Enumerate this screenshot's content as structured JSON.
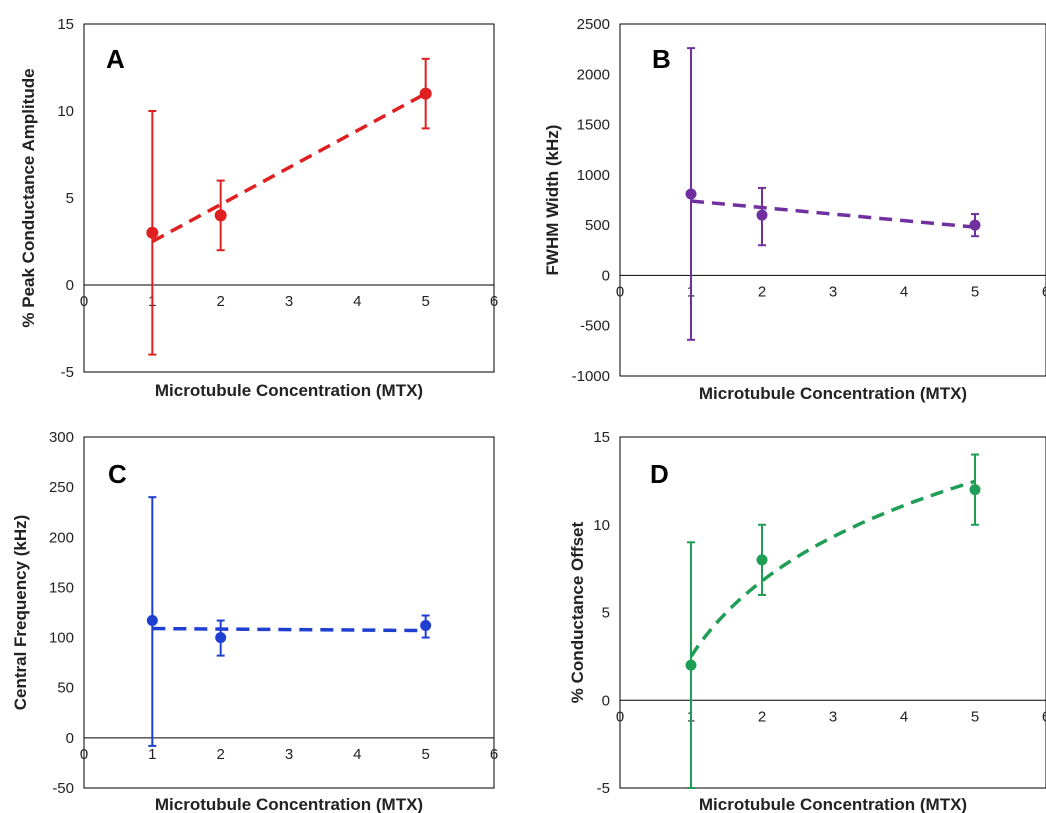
{
  "chart_data": [
    {
      "panel": "A",
      "type": "scatter",
      "xlabel": "Microtubule Concentration (MTX)",
      "ylabel": "% Peak Conductance Amplitude",
      "xlim": [
        0,
        6
      ],
      "ylim": [
        -5,
        15
      ],
      "xticks": [
        0,
        1,
        2,
        3,
        4,
        5,
        6
      ],
      "yticks": [
        -5,
        0,
        5,
        10,
        15
      ],
      "color": "#e02020",
      "points": [
        {
          "x": 1,
          "y": 3,
          "err_low": -4,
          "err_high": 10
        },
        {
          "x": 2,
          "y": 4,
          "err_low": 2,
          "err_high": 6
        },
        {
          "x": 5,
          "y": 11,
          "err_low": 9,
          "err_high": 13
        }
      ],
      "trend": {
        "kind": "linear",
        "x": [
          1,
          5
        ],
        "y": [
          2.5,
          11
        ]
      },
      "grid": false
    },
    {
      "panel": "B",
      "type": "scatter",
      "xlabel": "Microtubule Concentration (MTX)",
      "ylabel": "FWHM Width (kHz)",
      "xlim": [
        0,
        6
      ],
      "ylim": [
        -1000,
        2500
      ],
      "xticks": [
        0,
        1,
        2,
        3,
        4,
        5,
        6
      ],
      "yticks": [
        -1000,
        -500,
        0,
        500,
        1000,
        1500,
        2000,
        2500
      ],
      "color": "#7030a0",
      "points": [
        {
          "x": 1,
          "y": 810,
          "err_low": -640,
          "err_high": 2260
        },
        {
          "x": 2,
          "y": 600,
          "err_low": 300,
          "err_high": 870
        },
        {
          "x": 5,
          "y": 500,
          "err_low": 390,
          "err_high": 610
        }
      ],
      "trend": {
        "kind": "linear",
        "x": [
          1,
          5
        ],
        "y": [
          740,
          480
        ]
      },
      "grid": false
    },
    {
      "panel": "C",
      "type": "scatter",
      "xlabel": "Microtubule Concentration (MTX)",
      "ylabel": "Central Frequency (kHz)",
      "xlim": [
        0,
        6
      ],
      "ylim": [
        -50,
        300
      ],
      "xticks": [
        0,
        1,
        2,
        3,
        4,
        5,
        6
      ],
      "yticks": [
        -50,
        0,
        50,
        100,
        150,
        200,
        250,
        300
      ],
      "color": "#1f3fd0",
      "points": [
        {
          "x": 1,
          "y": 117,
          "err_low": -8,
          "err_high": 240
        },
        {
          "x": 2,
          "y": 100,
          "err_low": 82,
          "err_high": 117
        },
        {
          "x": 5,
          "y": 112,
          "err_low": 100,
          "err_high": 122
        }
      ],
      "trend": {
        "kind": "linear",
        "x": [
          1,
          5
        ],
        "y": [
          109,
          107
        ]
      },
      "grid": false
    },
    {
      "panel": "D",
      "type": "scatter",
      "xlabel": "Microtubule Concentration (MTX)",
      "ylabel": "% Conductance Offset",
      "xlim": [
        0,
        6
      ],
      "ylim": [
        -5,
        15
      ],
      "xticks": [
        0,
        1,
        2,
        3,
        4,
        5,
        6
      ],
      "yticks": [
        -5,
        0,
        5,
        10,
        15
      ],
      "color": "#1f9e55",
      "points": [
        {
          "x": 1,
          "y": 2,
          "err_low": -5,
          "err_high": 9
        },
        {
          "x": 2,
          "y": 8,
          "err_low": 6,
          "err_high": 10
        },
        {
          "x": 5,
          "y": 12,
          "err_low": 10,
          "err_high": 14
        }
      ],
      "trend": {
        "kind": "logarithmic",
        "a": 2.5,
        "b": 6.2,
        "x_from": 1,
        "x_to": 5
      },
      "grid": false
    }
  ]
}
